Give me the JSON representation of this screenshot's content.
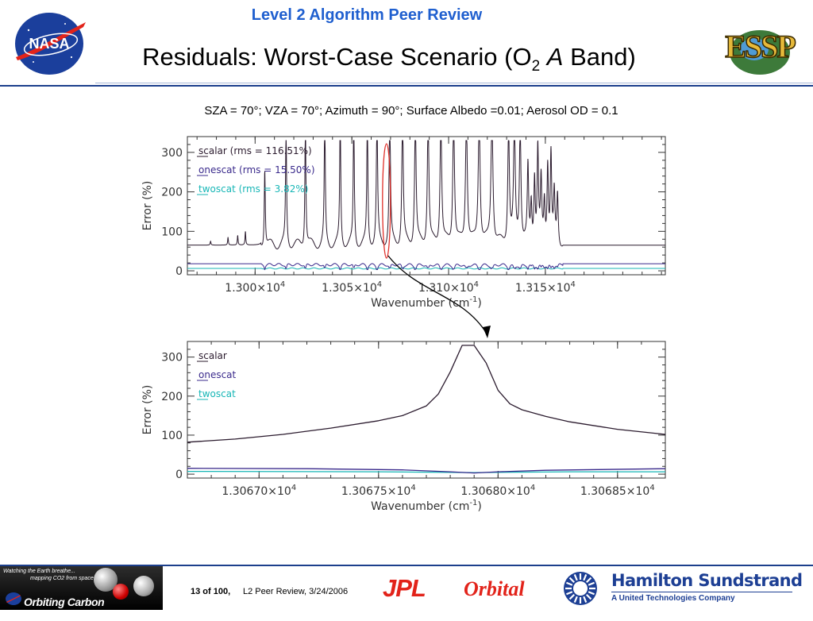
{
  "header": {
    "supertitle": "Level 2 Algorithm Peer Review",
    "title_main": "Residuals: Worst-Case Scenario (O",
    "title_sub": "2",
    "title_italic": "A",
    "title_end": "Band)",
    "nasa_logo_text": "NASA",
    "essp_logo_text": "ESSP"
  },
  "subtitle": "SZA = 70°; VZA = 70°; Azimuth = 90°; Surface Albedo =0.01; Aerosol OD = 0.1",
  "colors": {
    "scalar": "#2b1b2e",
    "onescat": "#3a2a8c",
    "twoscat": "#17b6b6",
    "callout": "#e0302a",
    "accent": "#1f5fcf"
  },
  "chart_data": [
    {
      "type": "line",
      "xlabel_main": "Wavenumber (cm",
      "xlabel_sup": "-1",
      "xlabel_end": ")",
      "ylabel": "Error (%)",
      "xlim": [
        12965,
        13212
      ],
      "ylim": [
        -10,
        340
      ],
      "yticks": [
        {
          "value": 0,
          "label": "0"
        },
        {
          "value": 100,
          "label": "100"
        },
        {
          "value": 200,
          "label": "200"
        },
        {
          "value": 300,
          "label": "300"
        }
      ],
      "xticks": [
        {
          "value": 13000,
          "mantissa": "1.300×10",
          "exp": "4"
        },
        {
          "value": 13050,
          "mantissa": "1.305×10",
          "exp": "4"
        },
        {
          "value": 13100,
          "mantissa": "1.310×10",
          "exp": "4"
        },
        {
          "value": 13150,
          "mantissa": "1.315×10",
          "exp": "4"
        }
      ],
      "series": [
        {
          "name": "scalar",
          "legend": "scalar (rms = 116.51%)",
          "baseline": 65
        },
        {
          "name": "onescat",
          "legend": "onescat (rms = 15.50%)",
          "baseline": 18
        },
        {
          "name": "twoscat",
          "legend": "twoscat (rms = 3.82%)",
          "baseline": 6
        }
      ],
      "highlight_x": 13067.9
    },
    {
      "type": "line",
      "xlabel_main": "Wavenumber (cm",
      "xlabel_sup": "-1",
      "xlabel_end": ")",
      "ylabel": "Error (%)",
      "xlim": [
        13066.7,
        13068.7
      ],
      "ylim": [
        -10,
        340
      ],
      "yticks": [
        {
          "value": 0,
          "label": "0"
        },
        {
          "value": 100,
          "label": "100"
        },
        {
          "value": 200,
          "label": "200"
        },
        {
          "value": 300,
          "label": "300"
        }
      ],
      "xticks": [
        {
          "value": 13067.0,
          "mantissa": "1.30670×10",
          "exp": "4"
        },
        {
          "value": 13067.5,
          "mantissa": "1.30675×10",
          "exp": "4"
        },
        {
          "value": 13068.0,
          "mantissa": "1.30680×10",
          "exp": "4"
        },
        {
          "value": 13068.5,
          "mantissa": "1.30685×10",
          "exp": "4"
        }
      ],
      "series": [
        {
          "name": "scalar",
          "legend": "scalar",
          "x": [
            13066.7,
            13066.9,
            13067.1,
            13067.3,
            13067.5,
            13067.6,
            13067.7,
            13067.75,
            13067.8,
            13067.85,
            13067.9,
            13067.95,
            13068.0,
            13068.05,
            13068.1,
            13068.2,
            13068.3,
            13068.5,
            13068.7
          ],
          "y": [
            82,
            90,
            102,
            118,
            137,
            150,
            175,
            205,
            262,
            330,
            330,
            285,
            215,
            180,
            165,
            148,
            134,
            115,
            102
          ]
        },
        {
          "name": "onescat",
          "legend": "onescat",
          "x": [
            13066.7,
            13067.2,
            13067.6,
            13067.8,
            13067.9,
            13068.0,
            13068.2,
            13068.7
          ],
          "y": [
            15,
            14,
            11,
            6,
            3,
            6,
            10,
            14
          ]
        },
        {
          "name": "twoscat",
          "legend": "twoscat",
          "x": [
            13066.7,
            13067.5,
            13067.9,
            13068.3,
            13068.7
          ],
          "y": [
            7,
            6,
            4,
            6,
            6
          ]
        }
      ]
    }
  ],
  "footer": {
    "banner_line1": "Watching the Earth breathe...",
    "banner_line2": "mapping CO2 from space.",
    "banner_title": "Orbiting Carbon Observatory",
    "page_label": "13  of  100,",
    "page_ref": "L2 Peer Review, 3/24/2006",
    "jpl": "JPL",
    "orbital": "Orbital",
    "hs_name": "Hamilton Sundstrand",
    "hs_sub": "A United Technologies Company"
  }
}
